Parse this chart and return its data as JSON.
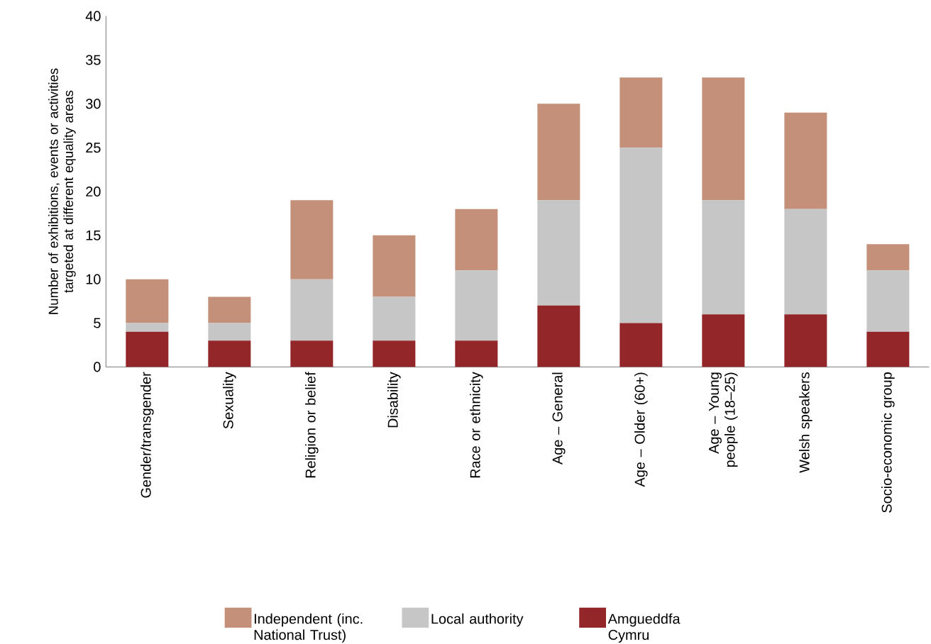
{
  "chart_data": {
    "type": "bar",
    "stacked": true,
    "ylabel": "Number of exhibitions, events or activities targeted at different equality areas",
    "categories": [
      "Gender/transgender",
      "Sexuality",
      "Religion or belief",
      "Disability",
      "Race or ethnicity",
      "Age – General",
      "Age – Older (60+)",
      "Age – Young people (18–25)",
      "Welsh speakers",
      "Socio-economic group"
    ],
    "series": [
      {
        "name": "Amgueddfa Cymru",
        "color": "#922628",
        "values": [
          4,
          3,
          3,
          3,
          3,
          7,
          5,
          6,
          6,
          4
        ]
      },
      {
        "name": "Local authority",
        "color": "#c6c6c6",
        "values": [
          1,
          2,
          7,
          5,
          8,
          12,
          20,
          13,
          12,
          7
        ]
      },
      {
        "name": "Independent (inc. National Trust)",
        "color": "#c4907a",
        "values": [
          5,
          3,
          9,
          7,
          7,
          11,
          8,
          14,
          11,
          3
        ]
      }
    ],
    "ylim": [
      0,
      40
    ],
    "yticks": [
      0,
      5,
      10,
      15,
      20,
      25,
      30,
      35,
      40
    ],
    "legend": "bottom"
  }
}
